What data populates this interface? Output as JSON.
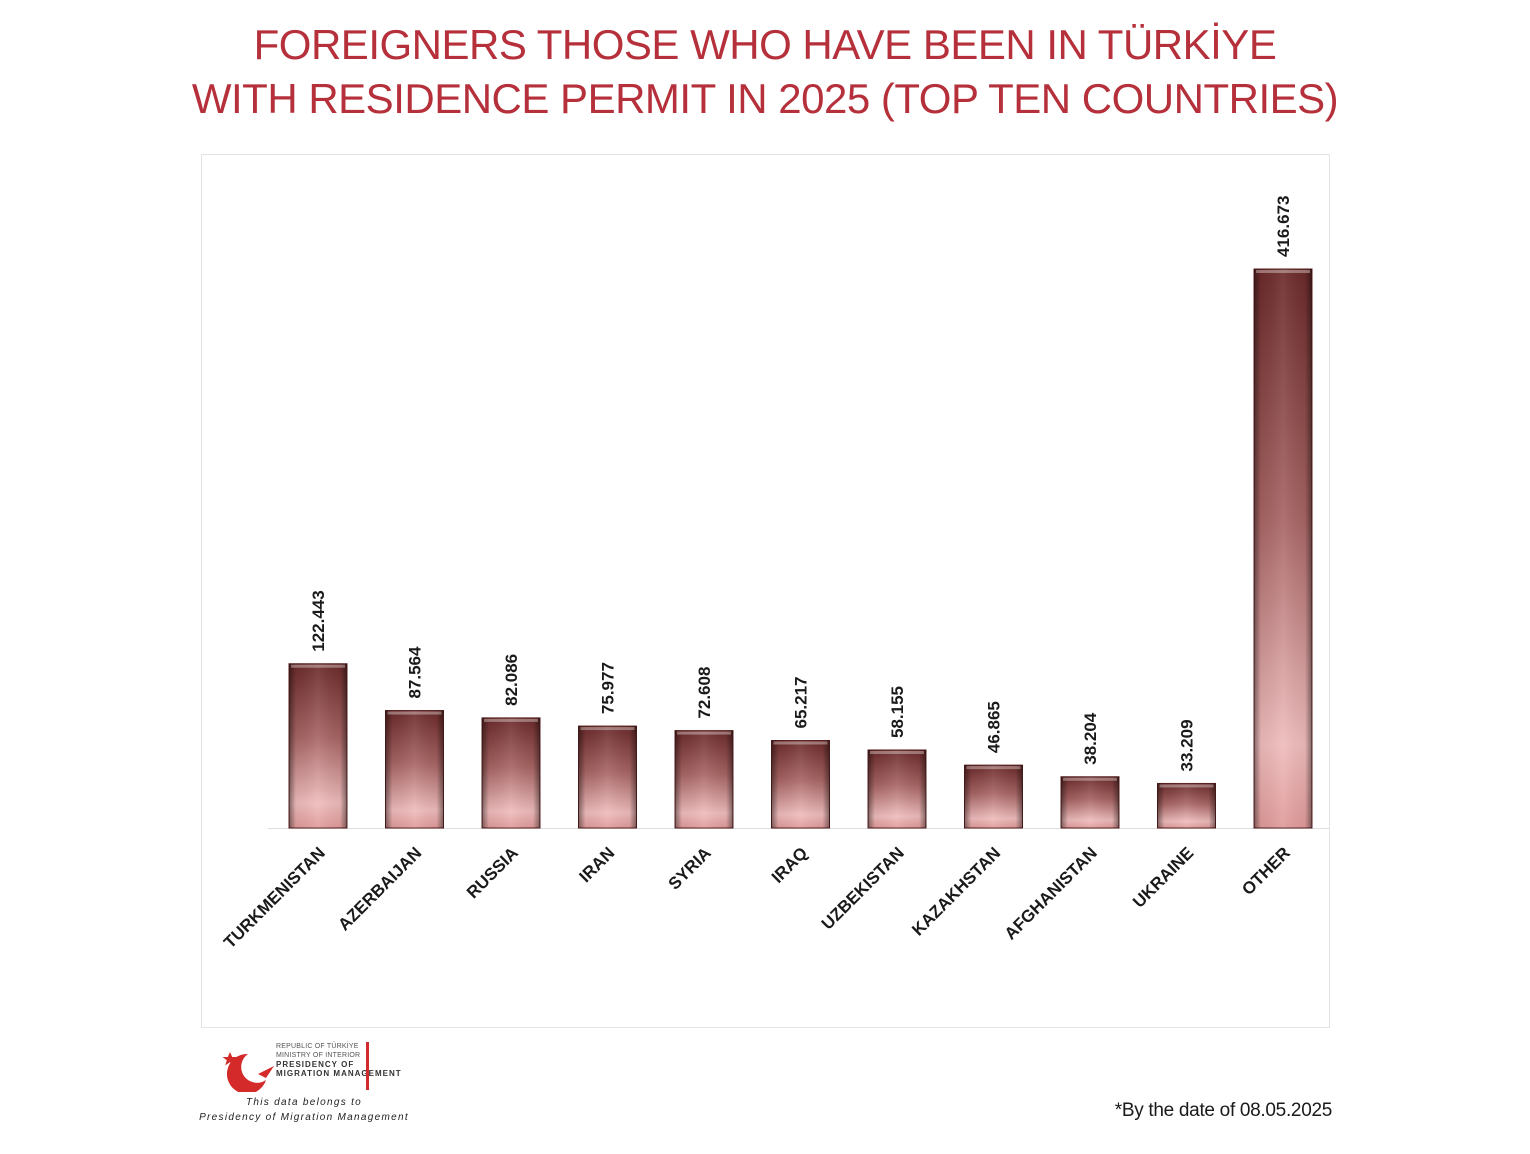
{
  "title": {
    "line1": "FOREIGNERS THOSE WHO HAVE BEEN IN TÜRKİYE",
    "line2": "WITH RESIDENCE PERMIT IN 2025 (TOP TEN COUNTRIES)"
  },
  "chart_data": {
    "type": "bar",
    "title": "FOREIGNERS THOSE WHO HAVE BEEN IN TÜRKİYE WITH RESIDENCE PERMIT IN 2025 (TOP TEN COUNTRIES)",
    "categories": [
      "TURKMENISTAN",
      "AZERBAIJAN",
      "RUSSIA",
      "IRAN",
      "SYRIA",
      "IRAQ",
      "UZBEKISTAN",
      "KAZAKHSTAN",
      "AFGHANISTAN",
      "UKRAINE",
      "OTHER"
    ],
    "values": [
      122443,
      87564,
      82086,
      75977,
      72608,
      65217,
      58155,
      46865,
      38204,
      33209,
      416673
    ],
    "value_labels": [
      "122.443",
      "87.564",
      "82.086",
      "75.977",
      "72.608",
      "65.217",
      "58.155",
      "46.865",
      "38.204",
      "33.209",
      "416.673"
    ],
    "xlabel": "",
    "ylabel": "",
    "ylim": [
      0,
      416673
    ],
    "grid": false,
    "legend": "none",
    "colors": {
      "bar_top": "#6b2a2a",
      "bar_bottom": "#f2b8b8",
      "label": "#1a1a1a"
    }
  },
  "logo": {
    "line1": "REPUBLIC OF TÜRKİYE",
    "line2": "MINISTRY OF INTERIOR",
    "line3": "PRESIDENCY OF",
    "line4": "MIGRATION MANAGEMENT",
    "colors": {
      "red": "#d42a2a"
    }
  },
  "attribution": {
    "line1": "This data belongs to",
    "line2": "Presidency of Migration Management"
  },
  "footnote": "*By the date of 08.05.2025",
  "colors": {
    "title": "#b5303a"
  }
}
